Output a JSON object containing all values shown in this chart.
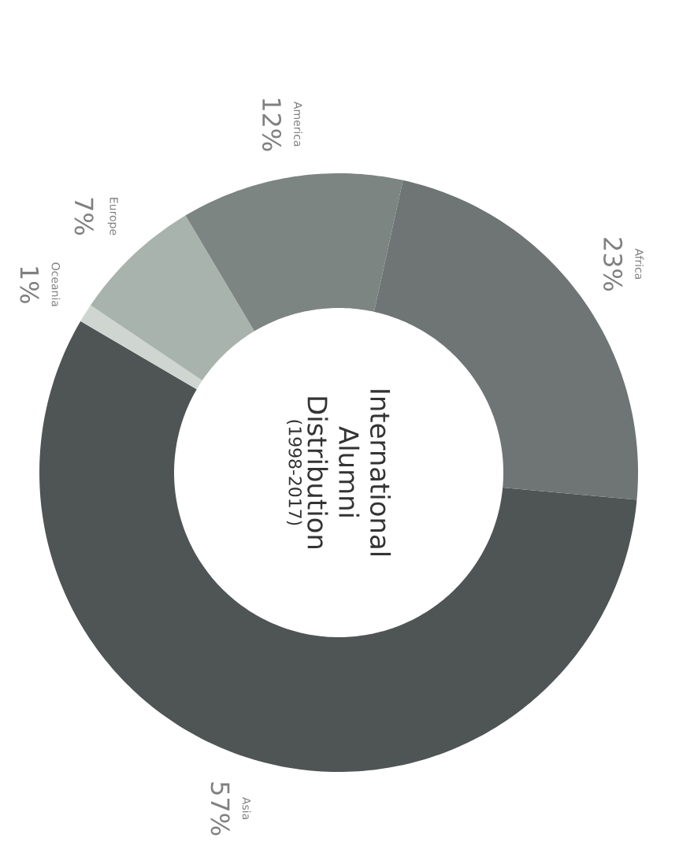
{
  "chart_data": {
    "type": "donut",
    "title": "International Alumni Distribution",
    "subtitle": "(1998-2017)",
    "categories": [
      "Asia",
      "Oceania",
      "Europe",
      "America",
      "Africa"
    ],
    "values": [
      57,
      1,
      7,
      12,
      23
    ],
    "value_labels": [
      "57%",
      "1%",
      "7%",
      "12%",
      "23%"
    ],
    "colors": [
      "#4f5554",
      "#cfd6d2",
      "#a9b3ae",
      "#7d8583",
      "#6e7574"
    ]
  }
}
